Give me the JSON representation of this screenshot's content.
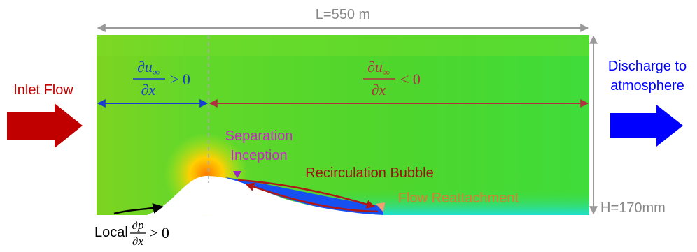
{
  "dimensions": {
    "length": "L=550 m",
    "height": "H=170mm"
  },
  "inlet": {
    "label": "Inlet Flow"
  },
  "outlet": {
    "lines": [
      "Discharge to",
      "atmosphere"
    ]
  },
  "gradients": [
    {
      "numerator": "∂u",
      "subscript": "∞",
      "denominator": "∂x",
      "relation": "> 0"
    },
    {
      "numerator": "∂u",
      "subscript": "∞",
      "denominator": "∂x",
      "relation": "< 0"
    }
  ],
  "annotations": {
    "separation": [
      "Separation",
      "Inception"
    ],
    "bubble": "Recirculation Bubble",
    "reattachment": "Flow Reattachment",
    "pressure": {
      "prefix": "Local",
      "numerator": "∂p",
      "denominator": "∂x",
      "relation": "> 0"
    }
  }
}
